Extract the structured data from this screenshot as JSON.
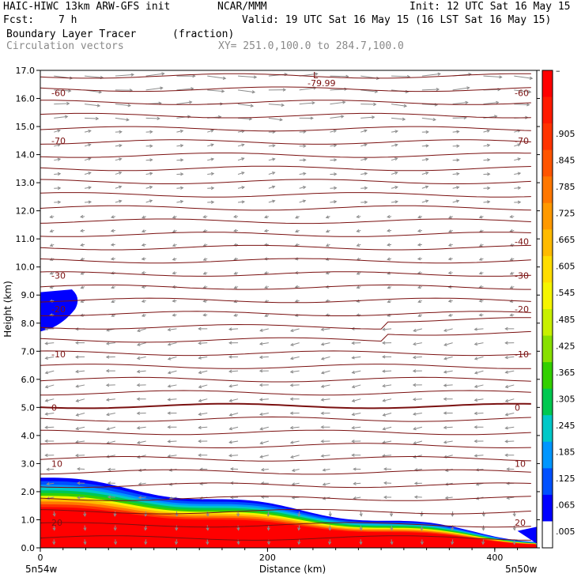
{
  "header": {
    "model": "HAIC-HIWC 13km ARW-GFS init",
    "org": "NCAR/MMM",
    "init": "Init: 12 UTC Sat 16 May 15",
    "fcst_label": "Fcst:",
    "fcst_value": "7 h",
    "valid": "Valid: 19 UTC Sat 16 May 15 (16 LST Sat 16 May 15)",
    "field_name": "Boundary Layer Tracer",
    "field_units": "(fraction)",
    "vectors_label": "Circulation vectors",
    "xy_range": "XY= 251.0,100.0 to 284.7,100.0"
  },
  "chart_data": {
    "type": "cross-section",
    "xlabel": "Distance (km)",
    "ylabel": "Height (km)",
    "xlim": [
      0,
      437
    ],
    "ylim": [
      0,
      17
    ],
    "x_ticks": [
      "0",
      "200",
      "400"
    ],
    "x_tick_values": [
      0,
      200,
      400
    ],
    "y_ticks": [
      "0.0",
      "1.0",
      "2.0",
      "3.0",
      "4.0",
      "5.0",
      "6.0",
      "7.0",
      "8.0",
      "9.0",
      "10.0",
      "11.0",
      "12.0",
      "13.0",
      "14.0",
      "15.0",
      "16.0",
      "17.0"
    ],
    "x_end_labels": [
      "5n54w",
      "5n50w"
    ],
    "low_label": "L",
    "low_value": "-79.99",
    "temperature_contours": [
      {
        "label": "-60",
        "height_km": 16.2
      },
      {
        "label": "-70",
        "height_km": 14.5
      },
      {
        "label": "-60",
        "height_km": 12.9
      },
      {
        "label": "-40",
        "height_km": 10.9
      },
      {
        "label": "-30",
        "height_km": 9.7
      },
      {
        "label": "-20",
        "height_km": 8.5
      },
      {
        "label": "-10",
        "height_km": 6.9
      },
      {
        "label": "0",
        "height_km": 5.0
      },
      {
        "label": "10",
        "height_km": 3.0
      },
      {
        "label": "20",
        "height_km": 0.9
      }
    ],
    "contour_labels_left": [
      "-60",
      "-70",
      "-30",
      "-20",
      "-10",
      "0",
      "10",
      "20"
    ],
    "contour_labels_right": [
      "-70",
      "-60",
      "-40",
      "-30",
      "-20",
      "-10",
      "0",
      "10",
      "20"
    ],
    "colorbar": {
      "labels": [
        "–",
        ".905",
        ".845",
        ".785",
        ".725",
        ".665",
        ".605",
        ".545",
        ".485",
        ".425",
        ".365",
        ".305",
        ".245",
        ".185",
        ".125",
        ".065",
        ".005"
      ],
      "colors": [
        "#ff0000",
        "#ff1a00",
        "#ff3300",
        "#ff5500",
        "#ff7700",
        "#ff9900",
        "#ffbb00",
        "#ffdd00",
        "#f5f500",
        "#c8f000",
        "#88e000",
        "#33d000",
        "#00c850",
        "#00c8c8",
        "#0096ff",
        "#0050ff",
        "#0000ff",
        "#ffffff"
      ]
    },
    "colors": {
      "contour": "#7a1010",
      "vector": "#8c8c8c"
    }
  }
}
